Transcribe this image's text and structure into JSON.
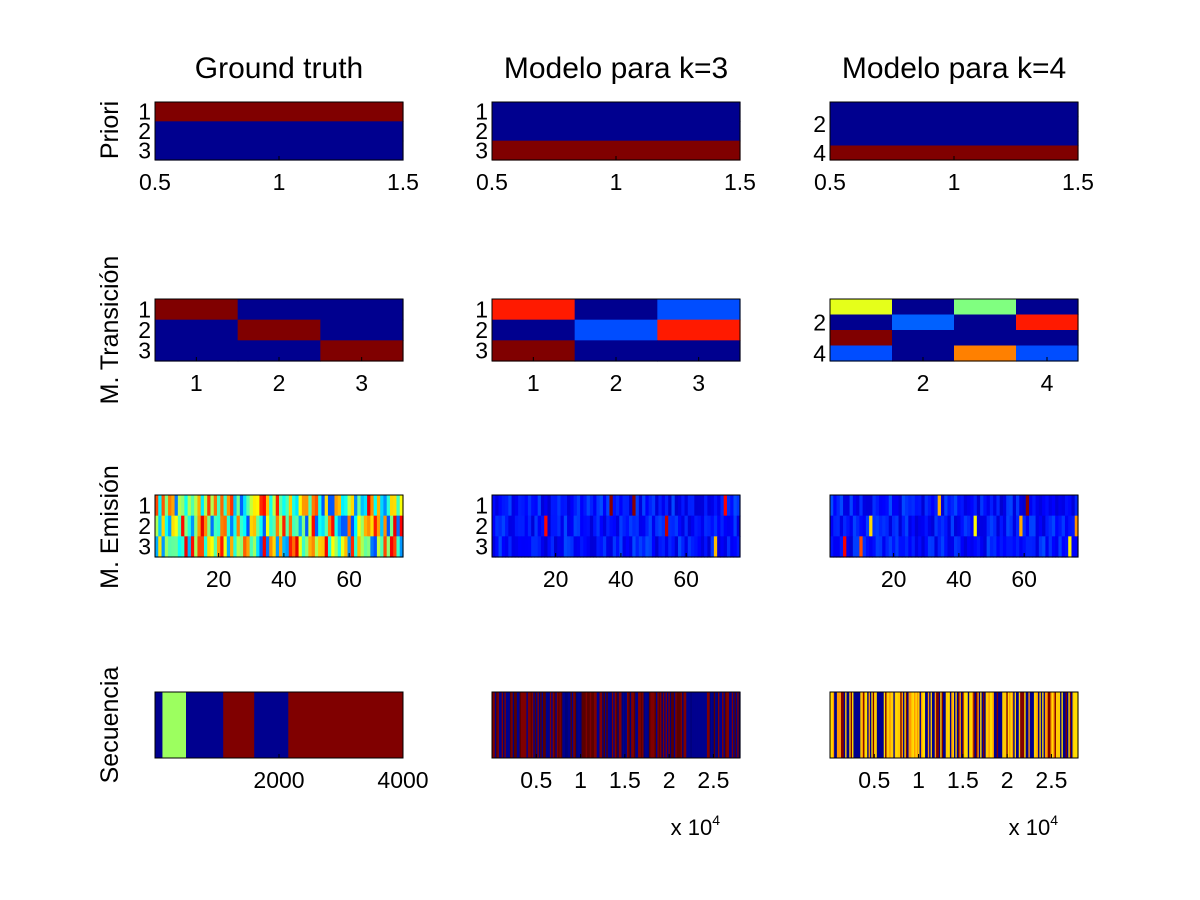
{
  "chart_data": [
    {
      "type": "heatmap",
      "row": "Priori",
      "col": "Ground truth",
      "title": "Ground truth",
      "ylabel": "Priori",
      "xlim": [
        0.5,
        1.5
      ],
      "x_ticks": [
        "0.5",
        "1",
        "1.5"
      ],
      "y_ticks": [
        "1",
        "2",
        "3"
      ],
      "values": [
        [
          1.0
        ],
        [
          0.0
        ],
        [
          0.0
        ]
      ]
    },
    {
      "type": "heatmap",
      "row": "Priori",
      "col": "Modelo k=3",
      "title": "Modelo para k=3",
      "ylabel": "",
      "xlim": [
        0.5,
        1.5
      ],
      "x_ticks": [
        "0.5",
        "1",
        "1.5"
      ],
      "y_ticks": [
        "1",
        "2",
        "3"
      ],
      "values": [
        [
          0.0
        ],
        [
          0.0
        ],
        [
          1.0
        ]
      ]
    },
    {
      "type": "heatmap",
      "row": "Priori",
      "col": "Modelo k=4",
      "title": "Modelo para k=4",
      "ylabel": "",
      "xlim": [
        0.5,
        1.5
      ],
      "x_ticks": [
        "0.5",
        "1",
        "1.5"
      ],
      "y_ticks": [
        "2",
        "4"
      ],
      "values": [
        [
          0.0
        ],
        [
          0.0
        ],
        [
          0.0
        ],
        [
          1.0
        ]
      ]
    },
    {
      "type": "heatmap",
      "row": "M. Transición",
      "col": "Ground truth",
      "title": "",
      "ylabel": "M. Transición",
      "x_ticks": [
        "1",
        "2",
        "3"
      ],
      "y_ticks": [
        "1",
        "2",
        "3"
      ],
      "values": [
        [
          1,
          0,
          0
        ],
        [
          0,
          1,
          0
        ],
        [
          0,
          0,
          1
        ]
      ]
    },
    {
      "type": "heatmap",
      "row": "M. Transición",
      "col": "Modelo k=3",
      "title": "",
      "ylabel": "",
      "x_ticks": [
        "1",
        "2",
        "3"
      ],
      "y_ticks": [
        "1",
        "2",
        "3"
      ],
      "values": [
        [
          0.85,
          0.0,
          0.2
        ],
        [
          0.0,
          0.2,
          0.85
        ],
        [
          1.0,
          0.0,
          0.0
        ]
      ]
    },
    {
      "type": "heatmap",
      "row": "M. Transición",
      "col": "Modelo k=4",
      "title": "",
      "ylabel": "",
      "x_ticks": [
        "2",
        "4"
      ],
      "y_ticks": [
        "2",
        "4"
      ],
      "values": [
        [
          0.6,
          0.0,
          0.5,
          0.0
        ],
        [
          0.0,
          0.22,
          0.0,
          0.85
        ],
        [
          1.0,
          0.0,
          0.0,
          0.0
        ],
        [
          0.2,
          0.0,
          0.75,
          0.2
        ]
      ]
    },
    {
      "type": "heatmap",
      "row": "M. Emisión",
      "col": "Ground truth",
      "title": "",
      "ylabel": "M. Emisión",
      "n_cols": 76,
      "x_ticks": [
        "20",
        "40",
        "60"
      ],
      "y_ticks": [
        "1",
        "2",
        "3"
      ],
      "values": "mixed (jet colormap, see series)"
    },
    {
      "type": "heatmap",
      "row": "M. Emisión",
      "col": "Modelo k=3",
      "title": "",
      "ylabel": "",
      "n_cols": 76,
      "x_ticks": [
        "20",
        "40",
        "60"
      ],
      "y_ticks": [
        "1",
        "2",
        "3"
      ],
      "values": "mostly low, sparse high values in row 3"
    },
    {
      "type": "heatmap",
      "row": "M. Emisión",
      "col": "Modelo k=4",
      "title": "",
      "ylabel": "",
      "n_cols": 76,
      "x_ticks": [
        "20",
        "40",
        "60"
      ],
      "y_ticks": [],
      "values": "mostly low, sparse high values"
    },
    {
      "type": "heatmap",
      "row": "Secuencia",
      "col": "Ground truth",
      "title": "",
      "ylabel": "Secuencia",
      "xlim": [
        0,
        4000
      ],
      "x_ticks": [
        "2000",
        "4000"
      ],
      "segments": [
        [
          0,
          120,
          0.0
        ],
        [
          120,
          500,
          0.6
        ],
        [
          500,
          1100,
          0.0
        ],
        [
          1100,
          1600,
          1.0
        ],
        [
          1600,
          2150,
          0.0
        ],
        [
          2150,
          4000,
          1.0
        ]
      ]
    },
    {
      "type": "heatmap",
      "row": "Secuencia",
      "col": "Modelo k=3",
      "title": "",
      "ylabel": "",
      "xlim": [
        0,
        28000
      ],
      "x_ticks": [
        "0.5",
        "1",
        "1.5",
        "2",
        "2.5"
      ],
      "x_multiplier": "x 10",
      "x_multiplier_exp": "4",
      "values": "rapidly alternating dark blue / dark red"
    },
    {
      "type": "heatmap",
      "row": "Secuencia",
      "col": "Modelo k=4",
      "title": "",
      "ylabel": "",
      "xlim": [
        0,
        28000
      ],
      "x_ticks": [
        "0.5",
        "1",
        "1.5",
        "2",
        "2.5"
      ],
      "x_multiplier": "x 10",
      "x_multiplier_exp": "4",
      "values": "rapidly alternating yellow / orange / dark blue / dark red"
    }
  ],
  "colormap": "jet",
  "colors": {
    "dark_blue": "#00008f",
    "dark_red": "#800000"
  }
}
